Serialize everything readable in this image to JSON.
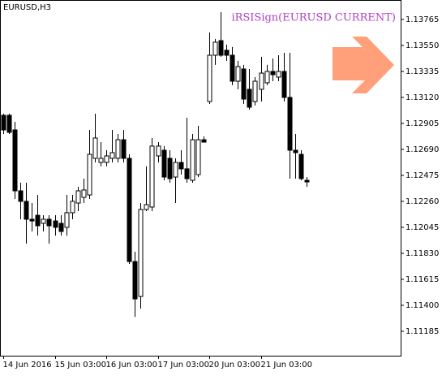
{
  "chart_data": {
    "type": "candlestick",
    "title": "EURUSD,H3",
    "annotation": "iRSISign(EURUSD CURRENT)",
    "categories": [
      "14 Jun 2016",
      null,
      null,
      null,
      null,
      null,
      null,
      null,
      null,
      "15 Jun 03:00",
      null,
      null,
      null,
      null,
      null,
      null,
      null,
      null,
      "16 Jun 03:00",
      null,
      null,
      null,
      null,
      null,
      null,
      null,
      null,
      "17 Jun 03:00",
      null,
      null,
      null,
      null,
      null,
      null,
      null,
      null,
      "20 Jun 03:00",
      null,
      null,
      null,
      null,
      null,
      null,
      null,
      null,
      "21 Jun 03:00",
      null,
      null,
      null,
      null,
      null,
      null,
      null,
      null
    ],
    "open": [
      1.12972,
      1.12972,
      1.12851,
      1.12347,
      1.1226,
      1.12112,
      1.12145,
      1.12078,
      1.12112,
      1.12098,
      1.12078,
      1.12045,
      1.12166,
      1.12246,
      1.12293,
      1.12313,
      1.12616,
      1.12582,
      1.12582,
      1.12616,
      1.12616,
      1.1277,
      1.12616,
      1.11762,
      1.11473,
      1.12193,
      1.12213,
      1.12636,
      1.12683,
      1.12616,
      1.12461,
      1.12582,
      1.12529,
      1.12434,
      1.12481,
      1.1277,
      1.13086,
      1.13469,
      1.1359,
      1.1351,
      1.13469,
      1.13254,
      1.13355,
      1.13187,
      1.13086,
      1.13187,
      1.13241,
      1.13335,
      1.13288,
      1.13335,
      1.1312,
      1.12683,
      1.12649,
      1.12434
    ],
    "high": [
      1.12985,
      1.12985,
      1.12918,
      1.12414,
      1.12414,
      1.12246,
      1.12313,
      1.12145,
      1.12145,
      1.12145,
      1.12145,
      1.12313,
      1.12313,
      1.12381,
      1.12448,
      1.12851,
      1.12985,
      1.1275,
      1.12683,
      1.12851,
      1.12817,
      1.12851,
      1.12649,
      1.11843,
      1.12246,
      1.12549,
      1.12784,
      1.1275,
      1.12717,
      1.12683,
      1.12616,
      1.12683,
      1.12952,
      1.12817,
      1.12885,
      1.12797,
      1.13657,
      1.13604,
      1.13825,
      1.13557,
      1.13537,
      1.13422,
      1.13389,
      1.13355,
      1.13288,
      1.13456,
      1.13389,
      1.13442,
      1.13469,
      1.13489,
      1.13489,
      1.12817,
      1.12683,
      1.12461
    ],
    "low": [
      1.12817,
      1.12817,
      1.1228,
      1.12112,
      1.1191,
      1.12011,
      1.11977,
      1.12011,
      1.1191,
      1.11977,
      1.11977,
      1.11977,
      1.12112,
      1.12179,
      1.12246,
      1.1228,
      1.12582,
      1.12549,
      1.12549,
      1.12582,
      1.12582,
      1.12582,
      1.11742,
      1.11305,
      1.11373,
      1.12179,
      1.12179,
      1.12582,
      1.12434,
      1.12414,
      1.12246,
      1.12481,
      1.12414,
      1.12414,
      1.12461,
      1.1275,
      1.13066,
      1.13389,
      1.13456,
      1.13422,
      1.13221,
      1.13187,
      1.13066,
      1.13019,
      1.13053,
      1.13086,
      1.13221,
      1.13254,
      1.13254,
      1.13086,
      1.12448,
      1.12448,
      1.12434,
      1.12381
    ],
    "close": [
      1.12851,
      1.12831,
      1.12347,
      1.1226,
      1.12112,
      1.12098,
      1.12058,
      1.12112,
      1.12058,
      1.12045,
      1.12011,
      1.12166,
      1.1226,
      1.12347,
      1.12354,
      1.12649,
      1.12784,
      1.12616,
      1.12636,
      1.12663,
      1.1277,
      1.12616,
      1.11762,
      1.11453,
      1.12193,
      1.12233,
      1.12717,
      1.12717,
      1.12461,
      1.12448,
      1.12582,
      1.12529,
      1.12448,
      1.1277,
      1.1277,
      1.1275,
      1.13469,
      1.13577,
      1.13469,
      1.13469,
      1.13254,
      1.13375,
      1.13106,
      1.13039,
      1.13254,
      1.13321,
      1.13335,
      1.13308,
      1.13335,
      1.1312,
      1.12683,
      1.12663,
      1.12448,
      1.12421
    ],
    "up_color": "#ffffff",
    "down_color": "#000000",
    "annotation_color": "#b040c8",
    "ylim": [
      1.10983,
      1.13926
    ],
    "yticks": [
      1.13765,
      {
        "value": 1.1355,
        "label": "1.13550"
      },
      1.13335,
      {
        "value": 1.1312,
        "label": "1.13120"
      },
      1.12905,
      {
        "value": 1.1269,
        "label": "1.12690"
      },
      1.12475,
      {
        "value": 1.1226,
        "label": "1.12260"
      },
      1.12045,
      {
        "value": 1.1183,
        "label": "1.11830"
      },
      1.11615,
      {
        "value": 1.114,
        "label": "1.11400"
      },
      1.11185
    ]
  }
}
